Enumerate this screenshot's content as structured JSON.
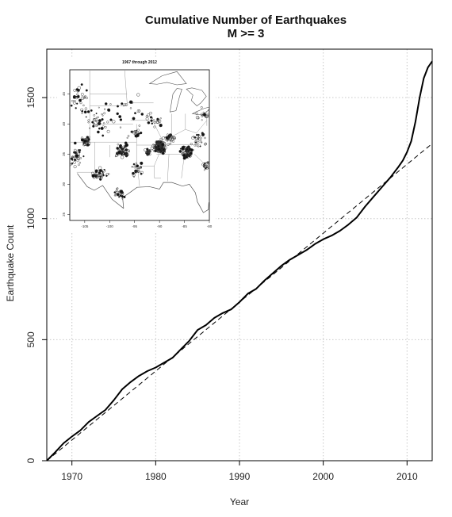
{
  "chart_data": {
    "type": "line",
    "title": "Cumulative Number of Earthquakes",
    "subtitle": "M >= 3",
    "xlabel": "Year",
    "ylabel": "Earthquake Count",
    "xlim": [
      1967,
      2013
    ],
    "ylim": [
      0,
      1700
    ],
    "x_ticks": [
      1970,
      1980,
      1990,
      2000,
      2010
    ],
    "y_ticks": [
      0,
      500,
      1000,
      1500
    ],
    "grid": true,
    "series": [
      {
        "style": "solid",
        "x": [
          1967,
          1968,
          1969,
          1970,
          1971,
          1972,
          1973,
          1974,
          1975,
          1976,
          1977,
          1978,
          1979,
          1980,
          1981,
          1982,
          1983,
          1984,
          1985,
          1986,
          1987,
          1988,
          1989,
          1990,
          1991,
          1992,
          1993,
          1994,
          1995,
          1996,
          1997,
          1998,
          1999,
          2000,
          2001,
          2002,
          2003,
          2004,
          2005,
          2006,
          2007,
          2008,
          2009,
          2009.5,
          2010,
          2010.5,
          2011,
          2011.5,
          2012,
          2012.5,
          2013
        ],
        "y": [
          0,
          35,
          72,
          100,
          125,
          160,
          185,
          210,
          250,
          295,
          325,
          350,
          370,
          385,
          405,
          425,
          460,
          495,
          540,
          560,
          590,
          610,
          625,
          655,
          690,
          710,
          745,
          775,
          805,
          830,
          850,
          870,
          895,
          915,
          930,
          950,
          975,
          1005,
          1050,
          1090,
          1130,
          1170,
          1215,
          1240,
          1275,
          1320,
          1400,
          1500,
          1580,
          1625,
          1650
        ]
      },
      {
        "style": "dashed",
        "x": [
          1967,
          2013
        ],
        "y": [
          0,
          1310
        ]
      }
    ],
    "inset": {
      "title": "1967 through 2012",
      "x_ticks": [
        -105,
        -100,
        -95,
        -90,
        -85,
        -80
      ],
      "y_ticks": [
        25,
        30,
        35,
        40,
        45
      ]
    }
  }
}
